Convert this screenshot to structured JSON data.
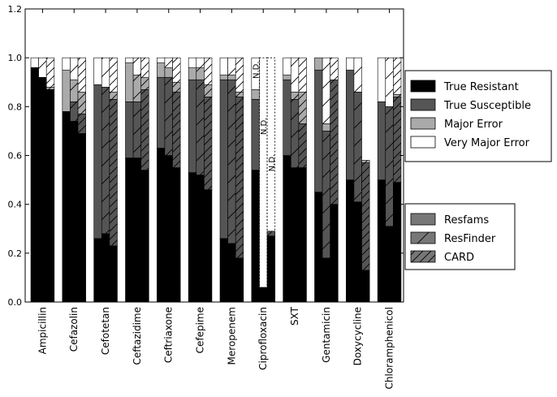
{
  "chart_data": {
    "type": "bar",
    "subtype": "stacked-grouped",
    "title": "",
    "xlabel": "",
    "ylabel": "",
    "ylim": [
      0,
      1.2
    ],
    "yticks": [
      "0.0",
      "0.2",
      "0.4",
      "0.6",
      "0.8",
      "1.0",
      "1.2"
    ],
    "grid": false,
    "legend_placement": "right",
    "categories": [
      "Ampicillin",
      "Cefazolin",
      "Cefotetan",
      "Ceftazidime",
      "Ceftriaxone",
      "Cefepime",
      "Meropenem",
      "Ciprofloxacin",
      "SXT",
      "Gentamicin",
      "Doxycycline",
      "Chloramphenicol"
    ],
    "outcome_legend": [
      {
        "name": "True Resistant",
        "color": "#000000"
      },
      {
        "name": "True Susceptible",
        "color": "#555555"
      },
      {
        "name": "Major Error",
        "color": "#aaaaaa"
      },
      {
        "name": "Very Major Error",
        "color": "#ffffff"
      }
    ],
    "tool_legend": [
      {
        "name": "Resfams",
        "hatch": "none"
      },
      {
        "name": "ResFinder",
        "hatch": "sparse-diagonal"
      },
      {
        "name": "CARD",
        "hatch": "dense-diagonal"
      }
    ],
    "series": [
      {
        "name": "Resfams",
        "values": [
          [
            0.96,
            0.0,
            0.0,
            0.04
          ],
          [
            0.78,
            0.0,
            0.17,
            0.05
          ],
          [
            0.26,
            0.63,
            0.0,
            0.11
          ],
          [
            0.59,
            0.23,
            0.16,
            0.02
          ],
          [
            0.63,
            0.29,
            0.06,
            0.02
          ],
          [
            0.53,
            0.38,
            0.05,
            0.04
          ],
          [
            0.26,
            0.65,
            0.02,
            0.07
          ],
          [
            0.54,
            0.29,
            0.04,
            0.13
          ],
          [
            0.6,
            0.31,
            0.02,
            0.07
          ],
          [
            0.45,
            0.5,
            0.05,
            0.0
          ],
          [
            0.5,
            0.45,
            0.0,
            0.05
          ],
          [
            0.5,
            0.32,
            0.0,
            0.18
          ]
        ]
      },
      {
        "name": "ResFinder",
        "values": [
          [
            0.92,
            0.0,
            0.0,
            0.08
          ],
          [
            0.74,
            0.08,
            0.09,
            0.09
          ],
          [
            0.28,
            0.6,
            0.0,
            0.12
          ],
          [
            0.59,
            0.23,
            0.11,
            0.07
          ],
          [
            0.6,
            0.32,
            0.04,
            0.04
          ],
          [
            0.52,
            0.39,
            0.05,
            0.04
          ],
          [
            0.24,
            0.67,
            0.02,
            0.07
          ],
          [
            0.06,
            0.0,
            0.0,
            0.0
          ],
          [
            0.55,
            0.28,
            0.03,
            0.14
          ],
          [
            0.18,
            0.52,
            0.03,
            0.27
          ],
          [
            0.41,
            0.45,
            0.0,
            0.14
          ],
          [
            0.31,
            0.49,
            0.0,
            0.2
          ]
        ]
      },
      {
        "name": "CARD",
        "values": [
          [
            0.87,
            0.0,
            0.01,
            0.12
          ],
          [
            0.69,
            0.08,
            0.09,
            0.14
          ],
          [
            0.23,
            0.6,
            0.03,
            0.14
          ],
          [
            0.54,
            0.33,
            0.05,
            0.08
          ],
          [
            0.55,
            0.31,
            0.04,
            0.1
          ],
          [
            0.46,
            0.38,
            0.05,
            0.11
          ],
          [
            0.18,
            0.66,
            0.02,
            0.14
          ],
          [
            0.27,
            0.02,
            0.0,
            0.0
          ],
          [
            0.55,
            0.18,
            0.13,
            0.14
          ],
          [
            0.4,
            0.51,
            0.0,
            0.09
          ],
          [
            0.13,
            0.44,
            0.01,
            0.0
          ],
          [
            0.49,
            0.35,
            0.01,
            0.15
          ]
        ]
      }
    ],
    "annotations": [
      {
        "text": "N.D.",
        "category": "Ciprofloxacin",
        "series": "Resfams",
        "at_y": 0.95
      },
      {
        "text": "N.D.",
        "category": "Ciprofloxacin",
        "series": "ResFinder",
        "at_y": 0.72
      },
      {
        "text": "N.D.",
        "category": "Ciprofloxacin",
        "series": "CARD",
        "at_y": 0.57
      }
    ],
    "not_determined_outline": {
      "category": "Ciprofloxacin",
      "series": [
        "ResFinder",
        "CARD"
      ],
      "top": 1.0
    }
  }
}
